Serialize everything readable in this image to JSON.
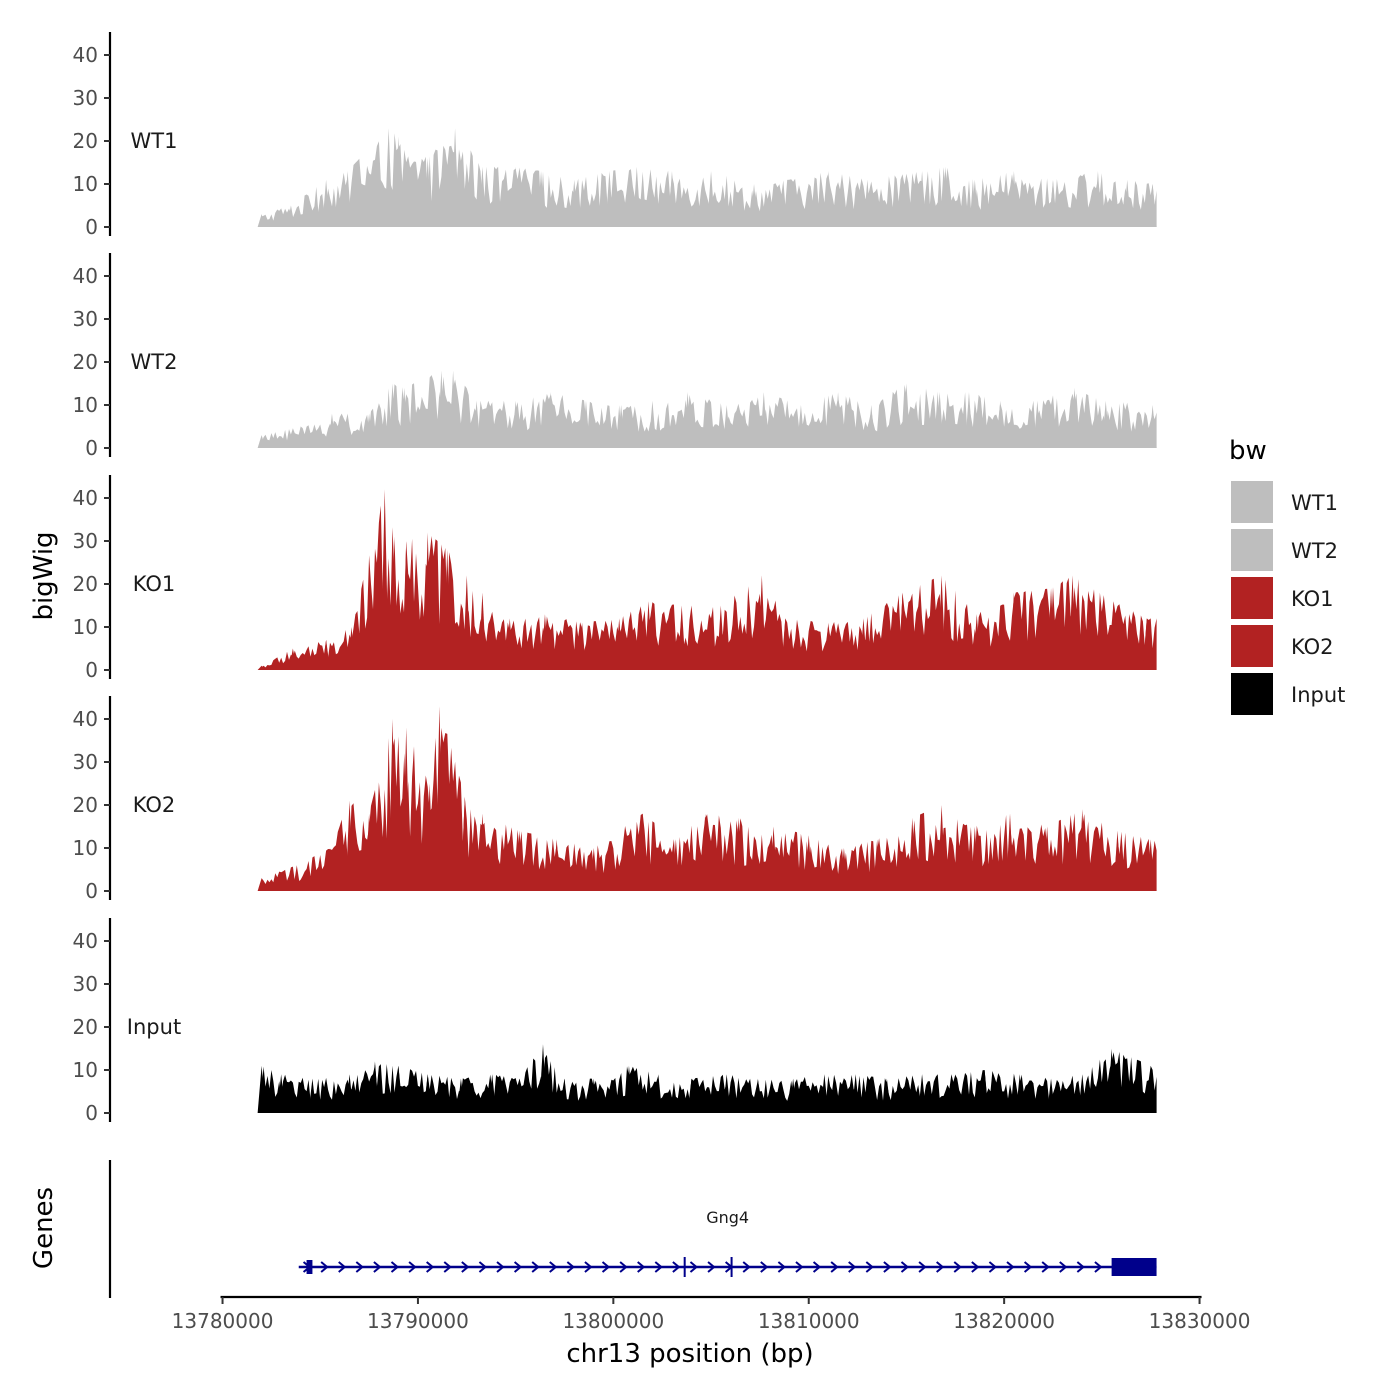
{
  "chart_data": {
    "type": "area",
    "title": "",
    "xlabel": "chr13 position (bp)",
    "ylabel": "bigWig",
    "gene_panel_label": "Genes",
    "xlim": [
      13779500,
      13830500
    ],
    "data_range": [
      13782000,
      13827800
    ],
    "ylim": [
      0,
      45
    ],
    "x_ticks": [
      13780000,
      13790000,
      13800000,
      13810000,
      13820000,
      13830000
    ],
    "x_tick_labels": [
      "13780000",
      "13790000",
      "13800000",
      "13810000",
      "13820000",
      "13830000"
    ],
    "y_ticks": [
      0,
      10,
      20,
      30,
      40
    ],
    "y_tick_labels": [
      "0",
      "10",
      "20",
      "30",
      "40"
    ],
    "tracks": [
      {
        "name": "WT1",
        "color": "#bebebe",
        "peaks": [
          [
            13782000,
            3
          ],
          [
            13783500,
            5
          ],
          [
            13785300,
            11
          ],
          [
            13786400,
            13
          ],
          [
            13788500,
            23
          ],
          [
            13789000,
            21
          ],
          [
            13790500,
            16
          ],
          [
            13791900,
            23
          ],
          [
            13793300,
            14
          ],
          [
            13795000,
            14
          ],
          [
            13796300,
            13
          ],
          [
            13798000,
            11
          ],
          [
            13799800,
            13
          ],
          [
            13801200,
            14
          ],
          [
            13803000,
            13
          ],
          [
            13805000,
            13
          ],
          [
            13807200,
            10
          ],
          [
            13809000,
            11
          ],
          [
            13811000,
            13
          ],
          [
            13813000,
            11
          ],
          [
            13815800,
            13
          ],
          [
            13817000,
            14
          ],
          [
            13818500,
            11
          ],
          [
            13820500,
            13
          ],
          [
            13822500,
            11
          ],
          [
            13824800,
            13
          ],
          [
            13826300,
            11
          ],
          [
            13827600,
            10
          ]
        ]
      },
      {
        "name": "WT2",
        "color": "#bebebe",
        "peaks": [
          [
            13782000,
            3
          ],
          [
            13784000,
            5
          ],
          [
            13785600,
            8
          ],
          [
            13787500,
            8
          ],
          [
            13788700,
            15
          ],
          [
            13789300,
            14
          ],
          [
            13791200,
            18
          ],
          [
            13791800,
            18
          ],
          [
            13793000,
            11
          ],
          [
            13795000,
            11
          ],
          [
            13796800,
            13
          ],
          [
            13798600,
            11
          ],
          [
            13800400,
            10
          ],
          [
            13802000,
            11
          ],
          [
            13803800,
            13
          ],
          [
            13805800,
            10
          ],
          [
            13807700,
            13
          ],
          [
            13809600,
            10
          ],
          [
            13811500,
            13
          ],
          [
            13813200,
            10
          ],
          [
            13815000,
            15
          ],
          [
            13816700,
            13
          ],
          [
            13818200,
            13
          ],
          [
            13819800,
            11
          ],
          [
            13821700,
            11
          ],
          [
            13823600,
            14
          ],
          [
            13825200,
            11
          ],
          [
            13827600,
            10
          ]
        ]
      },
      {
        "name": "KO1",
        "color": "#b22222",
        "peaks": [
          [
            13782000,
            1
          ],
          [
            13783600,
            5
          ],
          [
            13785300,
            7
          ],
          [
            13786600,
            10
          ],
          [
            13788300,
            42
          ],
          [
            13788800,
            31
          ],
          [
            13789400,
            30
          ],
          [
            13790500,
            32
          ],
          [
            13791500,
            28
          ],
          [
            13792500,
            22
          ],
          [
            13793300,
            18
          ],
          [
            13794700,
            12
          ],
          [
            13796500,
            13
          ],
          [
            13798400,
            11
          ],
          [
            13800300,
            12
          ],
          [
            13801800,
            16
          ],
          [
            13803500,
            15
          ],
          [
            13805500,
            15
          ],
          [
            13807600,
            22
          ],
          [
            13808800,
            12
          ],
          [
            13811000,
            11
          ],
          [
            13812800,
            12
          ],
          [
            13814800,
            18
          ],
          [
            13816800,
            22
          ],
          [
            13818600,
            13
          ],
          [
            13820500,
            18
          ],
          [
            13822400,
            19
          ],
          [
            13823500,
            22
          ],
          [
            13825600,
            16
          ],
          [
            13827300,
            12
          ]
        ]
      },
      {
        "name": "KO2",
        "color": "#b22222",
        "peaks": [
          [
            13782000,
            3
          ],
          [
            13783800,
            6
          ],
          [
            13785500,
            10
          ],
          [
            13786500,
            21
          ],
          [
            13787500,
            18
          ],
          [
            13788700,
            40
          ],
          [
            13789400,
            38
          ],
          [
            13790600,
            25
          ],
          [
            13791100,
            43
          ],
          [
            13792400,
            22
          ],
          [
            13793300,
            18
          ],
          [
            13795200,
            14
          ],
          [
            13797100,
            12
          ],
          [
            13799000,
            10
          ],
          [
            13801500,
            18
          ],
          [
            13803200,
            12
          ],
          [
            13804700,
            18
          ],
          [
            13806400,
            17
          ],
          [
            13808200,
            15
          ],
          [
            13810000,
            13
          ],
          [
            13811800,
            10
          ],
          [
            13813500,
            12
          ],
          [
            13815300,
            17
          ],
          [
            13816800,
            20
          ],
          [
            13818500,
            15
          ],
          [
            13820300,
            18
          ],
          [
            13822200,
            15
          ],
          [
            13824000,
            19
          ],
          [
            13825800,
            14
          ],
          [
            13827500,
            12
          ]
        ]
      },
      {
        "name": "Input",
        "color": "#000000",
        "peaks": [
          [
            13782000,
            11
          ],
          [
            13783000,
            9
          ],
          [
            13784600,
            8
          ],
          [
            13786500,
            9
          ],
          [
            13787800,
            12
          ],
          [
            13789000,
            11
          ],
          [
            13790500,
            9
          ],
          [
            13792200,
            8
          ],
          [
            13793800,
            9
          ],
          [
            13795200,
            8
          ],
          [
            13796400,
            16
          ],
          [
            13797500,
            8
          ],
          [
            13799000,
            8
          ],
          [
            13800800,
            11
          ],
          [
            13802300,
            9
          ],
          [
            13804000,
            8
          ],
          [
            13805800,
            9
          ],
          [
            13807400,
            8
          ],
          [
            13809200,
            8
          ],
          [
            13810800,
            9
          ],
          [
            13812400,
            9
          ],
          [
            13814000,
            8
          ],
          [
            13815800,
            9
          ],
          [
            13817500,
            9
          ],
          [
            13819000,
            10
          ],
          [
            13820800,
            9
          ],
          [
            13822400,
            8
          ],
          [
            13824000,
            9
          ],
          [
            13825500,
            15
          ],
          [
            13827500,
            11
          ]
        ]
      }
    ],
    "legend": {
      "title": "bw",
      "entries": [
        {
          "label": "WT1",
          "color": "#bebebe"
        },
        {
          "label": "WT2",
          "color": "#bebebe"
        },
        {
          "label": "KO1",
          "color": "#b22222"
        },
        {
          "label": "KO2",
          "color": "#b22222"
        },
        {
          "label": "Input",
          "color": "#000000"
        }
      ]
    },
    "gene": {
      "name": "Gng4",
      "color": "#00008b",
      "start": 13783900,
      "end": 13827800,
      "exons": [
        [
          13784300,
          13784600
        ],
        [
          13803600,
          13803700
        ],
        [
          13806000,
          13806100
        ],
        [
          13825500,
          13827800
        ]
      ]
    }
  }
}
